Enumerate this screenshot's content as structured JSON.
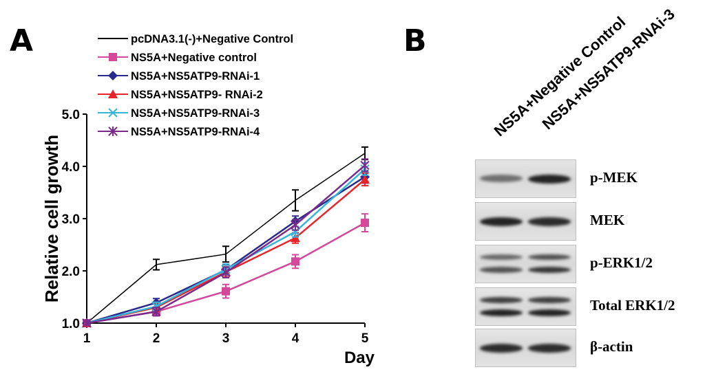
{
  "panels": {
    "a": "A",
    "b": "B"
  },
  "chart_data": {
    "type": "line",
    "xlabel": "Day",
    "ylabel": "Relative cell growth",
    "x": [
      1,
      2,
      3,
      4,
      5
    ],
    "xlim": [
      1,
      5
    ],
    "ylim": [
      1.0,
      5.0
    ],
    "yticks": [
      "1.0",
      "2.0",
      "3.0",
      "4.0",
      "5.0"
    ],
    "legend_position": "top-left",
    "series": [
      {
        "name": "pcDNA3.1(-)+Negative Control",
        "values": [
          1.0,
          2.12,
          2.32,
          3.35,
          4.25
        ],
        "errors": [
          0.04,
          0.1,
          0.15,
          0.2,
          0.12
        ],
        "color": "#000000",
        "marker": "none"
      },
      {
        "name": "NS5A+Negative control",
        "values": [
          1.0,
          1.22,
          1.61,
          2.18,
          2.92
        ],
        "errors": [
          0.03,
          0.08,
          0.13,
          0.13,
          0.17
        ],
        "color": "#d4479b",
        "marker": "square"
      },
      {
        "name": "NS5A+NS5ATP9-RNAi-1",
        "values": [
          1.0,
          1.39,
          2.02,
          2.95,
          3.8
        ],
        "errors": [
          0.03,
          0.08,
          0.1,
          0.1,
          0.12
        ],
        "color": "#2a2a8c",
        "marker": "diamond"
      },
      {
        "name": "NS5A+NS5ATP9- RNAi-2",
        "values": [
          1.0,
          1.3,
          1.98,
          2.63,
          3.75
        ],
        "errors": [
          0.03,
          0.08,
          0.1,
          0.1,
          0.12
        ],
        "color": "#e8232a",
        "marker": "triangle"
      },
      {
        "name": "NS5A+NS5ATP9-RNAi-3",
        "values": [
          1.0,
          1.32,
          2.03,
          2.75,
          3.95
        ],
        "errors": [
          0.03,
          0.08,
          0.1,
          0.1,
          0.12
        ],
        "color": "#35b5d8",
        "marker": "x"
      },
      {
        "name": "NS5A+NS5ATP9-RNAi-4",
        "values": [
          1.0,
          1.22,
          1.97,
          2.88,
          4.02
        ],
        "errors": [
          0.03,
          0.08,
          0.1,
          0.1,
          0.12
        ],
        "color": "#7a2a8a",
        "marker": "star"
      }
    ]
  },
  "blot": {
    "lanes": [
      "NS5A+Negative Control",
      "NS5A+NS5ATP9-RNAi-3"
    ],
    "proteins": [
      {
        "label": "p-MEK",
        "intensity": [
          0.55,
          0.95
        ],
        "doublet": false
      },
      {
        "label": "MEK",
        "intensity": [
          0.95,
          0.9
        ],
        "doublet": false
      },
      {
        "label": "p-ERK1/2",
        "intensity": [
          0.7,
          0.85
        ],
        "doublet": true
      },
      {
        "label": "Total ERK1/2",
        "intensity": [
          0.95,
          0.95
        ],
        "doublet": true
      },
      {
        "label": "β-actin",
        "intensity": [
          0.9,
          0.9
        ],
        "doublet": false
      }
    ]
  }
}
